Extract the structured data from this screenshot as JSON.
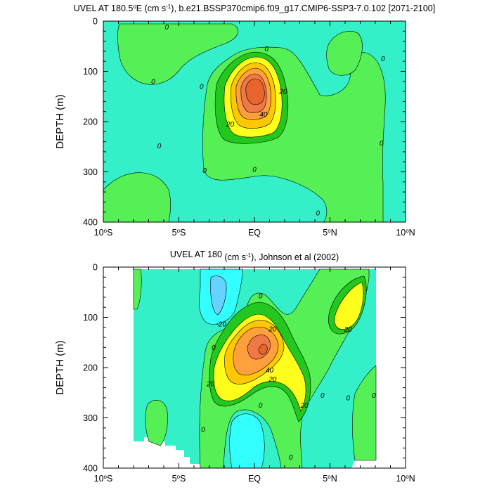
{
  "chart_data": [
    {
      "type": "contour",
      "title": "UVEL AT 180.5°E (cm s⁻¹), b.e21.BSSP370cmip6.f09_g17.CMIP6-SSP3-7.0.102 [2071-2100]",
      "title_parts": {
        "pre": "UVEL AT 180.5",
        "deg": "o",
        "mid": "E (cm s",
        "sup": "-1",
        "post": "), b.e21.BSSP370cmip6.f09_g17.CMIP6-SSP3-7.0.102 [2071-2100]"
      },
      "ylabel": "DEPTH (m)",
      "xlim": [
        -10,
        10
      ],
      "ylim": [
        0,
        400
      ],
      "y_reversed": true,
      "x_ticks": [
        {
          "value": -10,
          "label": "10",
          "deg": "o",
          "suffix": "S"
        },
        {
          "value": -5,
          "label": "5",
          "deg": "o",
          "suffix": "S"
        },
        {
          "value": 0,
          "label": "EQ",
          "deg": "",
          "suffix": ""
        },
        {
          "value": 5,
          "label": "5",
          "deg": "o",
          "suffix": "N"
        },
        {
          "value": 10,
          "label": "10",
          "deg": "o",
          "suffix": "N"
        }
      ],
      "y_ticks": [
        0,
        100,
        200,
        300,
        400
      ],
      "y_tick_labels": [
        "0",
        "100",
        "200",
        "300",
        "400"
      ],
      "contour_labels": [
        {
          "text": "0",
          "x": -5.8,
          "y": 12
        },
        {
          "text": "0",
          "x": 0.8,
          "y": 55
        },
        {
          "text": "0",
          "x": 8.5,
          "y": 75
        },
        {
          "text": "0",
          "x": -6.7,
          "y": 120
        },
        {
          "text": "0",
          "x": -3.5,
          "y": 130
        },
        {
          "text": "20",
          "x": 1.9,
          "y": 140
        },
        {
          "text": "40",
          "x": 0.6,
          "y": 185
        },
        {
          "text": "20",
          "x": -1.6,
          "y": 205
        },
        {
          "text": "0",
          "x": -6.3,
          "y": 248
        },
        {
          "text": "0",
          "x": 8.4,
          "y": 243
        },
        {
          "text": "0",
          "x": -3.3,
          "y": 297
        },
        {
          "text": "0",
          "x": 0.0,
          "y": 295
        },
        {
          "text": "0",
          "x": 4.2,
          "y": 382
        }
      ]
    },
    {
      "type": "contour",
      "title": "UVEL AT 180 (cm s⁻¹), Johnson et al (2002)",
      "title_parts": {
        "pre": "UVEL AT 180",
        "deg": "",
        "mid": " (cm s",
        "sup": "-1",
        "post": "), Johnson et al (2002)"
      },
      "ylabel": "DEPTH (m)",
      "xlim": [
        -10,
        10
      ],
      "ylim": [
        0,
        400
      ],
      "y_reversed": true,
      "x_ticks": [
        {
          "value": -10,
          "label": "10",
          "deg": "o",
          "suffix": "S"
        },
        {
          "value": -5,
          "label": "5",
          "deg": "o",
          "suffix": "S"
        },
        {
          "value": 0,
          "label": "EQ",
          "deg": "",
          "suffix": ""
        },
        {
          "value": 5,
          "label": "5",
          "deg": "o",
          "suffix": "N"
        },
        {
          "value": 10,
          "label": "10",
          "deg": "o",
          "suffix": "N"
        }
      ],
      "y_ticks": [
        0,
        100,
        200,
        300,
        400
      ],
      "y_tick_labels": [
        "0",
        "100",
        "200",
        "300",
        "400"
      ],
      "data_extent": {
        "x": [
          -8,
          8
        ],
        "y": [
          5,
          400
        ]
      },
      "contour_labels": [
        {
          "text": "0",
          "x": 0.4,
          "y": 57
        },
        {
          "text": "-20",
          "x": -2.2,
          "y": 113
        },
        {
          "text": "20",
          "x": 1.2,
          "y": 123
        },
        {
          "text": "20",
          "x": 6.2,
          "y": 124
        },
        {
          "text": "0",
          "x": -2.7,
          "y": 160
        },
        {
          "text": "40",
          "x": 1.0,
          "y": 205
        },
        {
          "text": "20",
          "x": -2.9,
          "y": 232
        },
        {
          "text": "20",
          "x": 1.2,
          "y": 223
        },
        {
          "text": "0",
          "x": 4.5,
          "y": 255
        },
        {
          "text": "0",
          "x": 6.2,
          "y": 260
        },
        {
          "text": "0",
          "x": 7.9,
          "y": 255
        },
        {
          "text": "20",
          "x": 3.3,
          "y": 275
        },
        {
          "text": "0",
          "x": 0.4,
          "y": 275
        },
        {
          "text": "0",
          "x": -3.4,
          "y": 323
        },
        {
          "text": "0",
          "x": 2.4,
          "y": 378
        }
      ]
    }
  ]
}
